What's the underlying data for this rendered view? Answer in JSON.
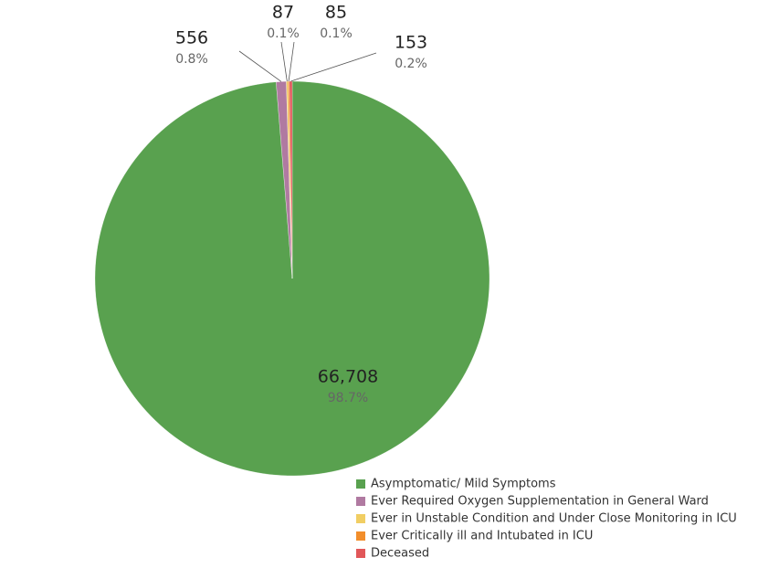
{
  "chart_data": {
    "type": "pie",
    "categories": [
      "Asymptomatic/ Mild Symptoms",
      "Ever Required Oxygen Supplementation in General Ward",
      "Ever in Unstable Condition and Under Close Monitoring in ICU",
      "Ever Critically ill and Intubated in ICU",
      "Deceased"
    ],
    "values": [
      66708,
      556,
      87,
      85,
      153
    ],
    "value_labels": [
      "66,708",
      "556",
      "87",
      "85",
      "153"
    ],
    "percent_labels": [
      "98.7%",
      "0.8%",
      "0.1%",
      "0.1%",
      "0.2%"
    ],
    "colors": [
      "#59a14f",
      "#b07aa1",
      "#f1ce63",
      "#f28e2b",
      "#e15759"
    ]
  }
}
